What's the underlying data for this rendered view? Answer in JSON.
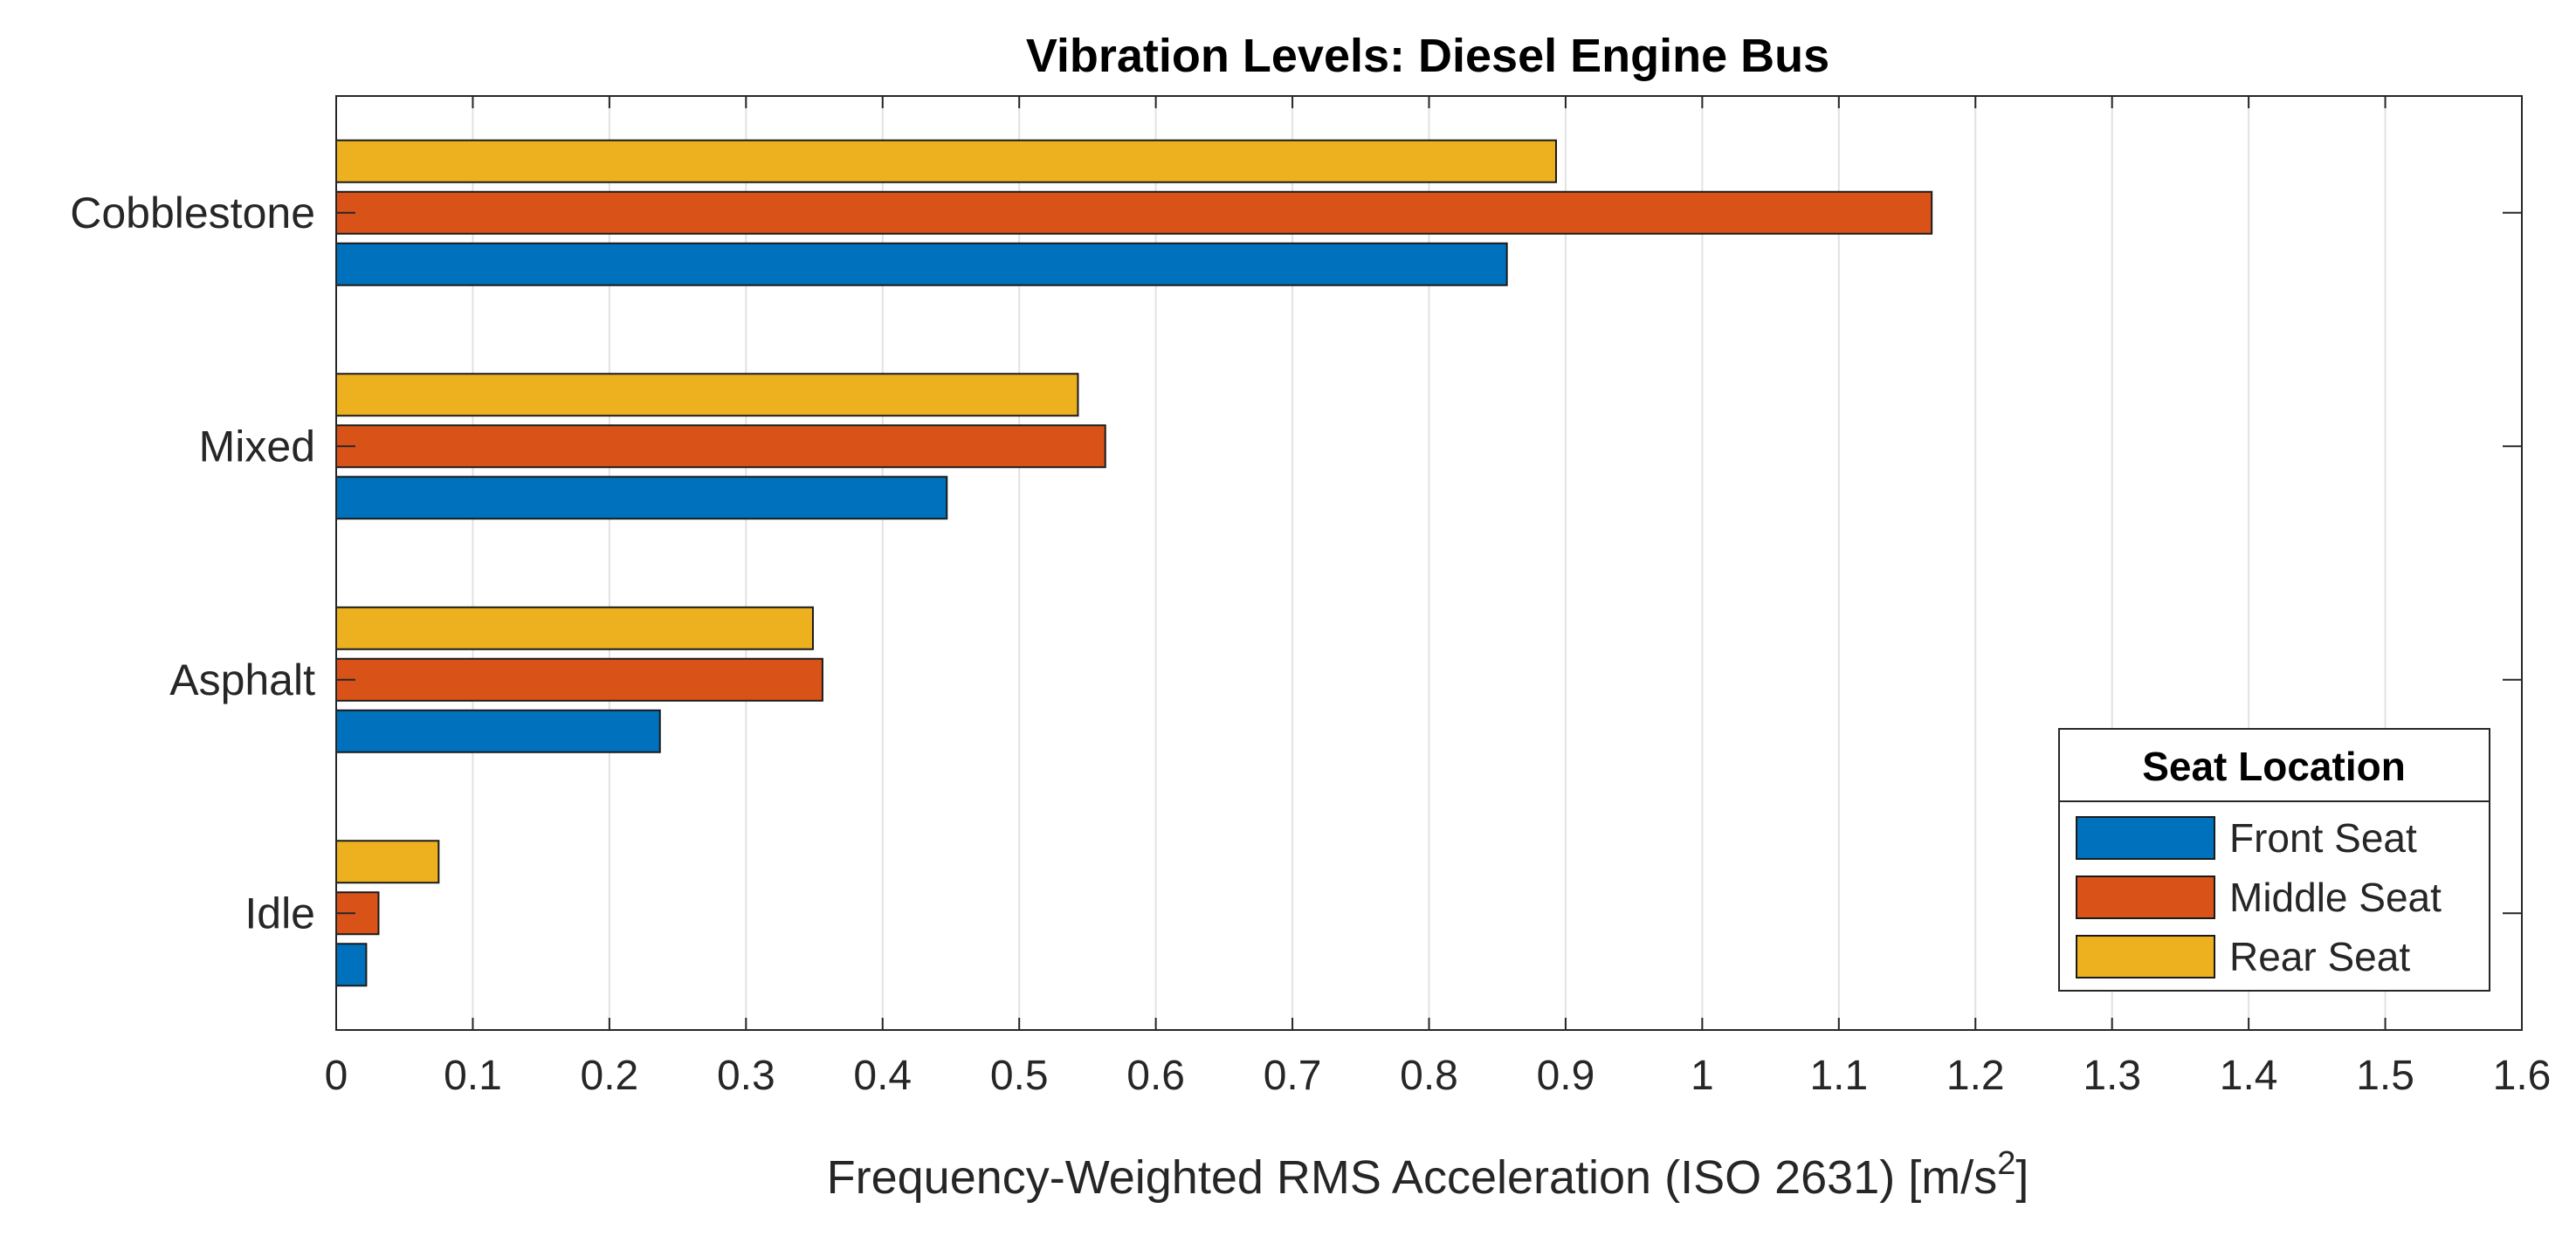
{
  "chart_data": {
    "type": "bar",
    "orientation": "horizontal",
    "title": "Vibration Levels: Diesel Engine Bus",
    "xlabel": "Frequency-Weighted RMS Acceleration (ISO 2631) [m/s",
    "xlabel_superscript": "2",
    "xlabel_suffix": "]",
    "ylabel": "",
    "categories": [
      "Idle",
      "Asphalt",
      "Mixed",
      "Cobblestone"
    ],
    "series": [
      {
        "name": "Front Seat",
        "color": "#0072BD",
        "values": [
          0.022,
          0.237,
          0.447,
          0.857
        ]
      },
      {
        "name": "Middle Seat",
        "color": "#D95319",
        "values": [
          0.031,
          0.356,
          0.563,
          1.168
        ]
      },
      {
        "name": "Rear Seat",
        "color": "#EDB120",
        "values": [
          0.075,
          0.349,
          0.543,
          0.893
        ]
      }
    ],
    "xlim": [
      0,
      1.6
    ],
    "xticks": [
      "0",
      "0.1",
      "0.2",
      "0.3",
      "0.4",
      "0.5",
      "0.6",
      "0.7",
      "0.8",
      "0.9",
      "1",
      "1.1",
      "1.2",
      "1.3",
      "1.4",
      "1.5",
      "1.6"
    ],
    "grid": "x",
    "legend": {
      "title": "Seat Location",
      "position": "bottom-right"
    }
  }
}
